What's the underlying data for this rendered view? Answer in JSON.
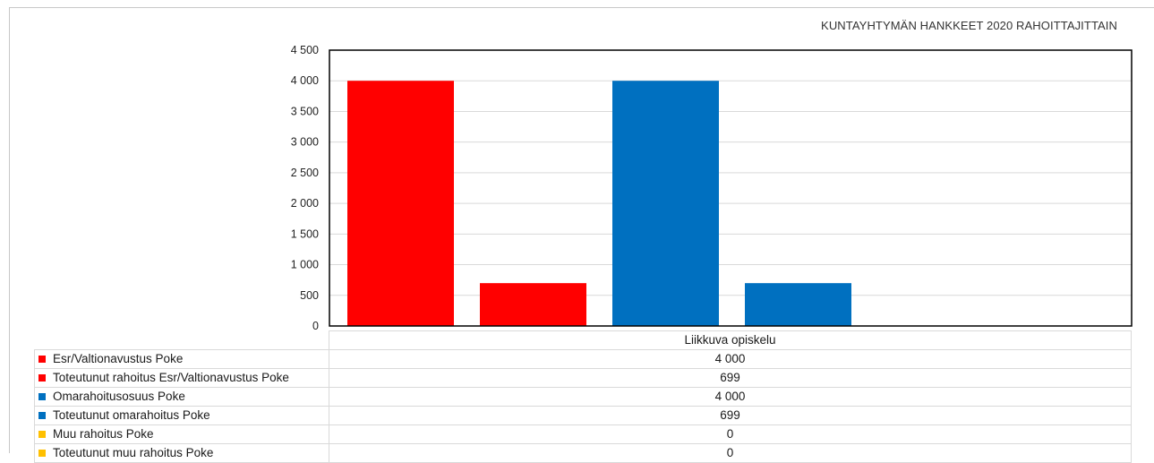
{
  "chart_data": {
    "type": "bar",
    "title": "KUNTAYHTYMÄN HANKKEET 2020 RAHOITTAJITTAIN",
    "xlabel": "",
    "ylabel": "",
    "ylim": [
      0,
      4500
    ],
    "yticks": [
      0,
      500,
      1000,
      1500,
      2000,
      2500,
      3000,
      3500,
      4000,
      4500
    ],
    "ytick_labels": [
      "0",
      "500",
      "1 000",
      "1 500",
      "2 000",
      "2 500",
      "3 000",
      "3 500",
      "4 000",
      "4 500"
    ],
    "grid": true,
    "legend": "data-table-below",
    "categories": [
      "Liikkuva opiskelu"
    ],
    "series": [
      {
        "name": "Esr/Valtionavustus Poke",
        "values": [
          4000
        ],
        "display": [
          "4 000"
        ],
        "color": "#ff0000"
      },
      {
        "name": "Toteutunut rahoitus Esr/Valtionavustus Poke",
        "values": [
          699
        ],
        "display": [
          "699"
        ],
        "color": "#ff0000"
      },
      {
        "name": "Omarahoitusosuus Poke",
        "values": [
          4000
        ],
        "display": [
          "4 000"
        ],
        "color": "#0070c0"
      },
      {
        "name": "Toteutunut omarahoitus Poke",
        "values": [
          699
        ],
        "display": [
          "699"
        ],
        "color": "#0070c0"
      },
      {
        "name": "Muu rahoitus Poke",
        "values": [
          0
        ],
        "display": [
          "0"
        ],
        "color": "#ffc000"
      },
      {
        "name": "Toteutunut muu rahoitus Poke",
        "values": [
          0
        ],
        "display": [
          "0"
        ],
        "color": "#ffc000"
      }
    ]
  }
}
